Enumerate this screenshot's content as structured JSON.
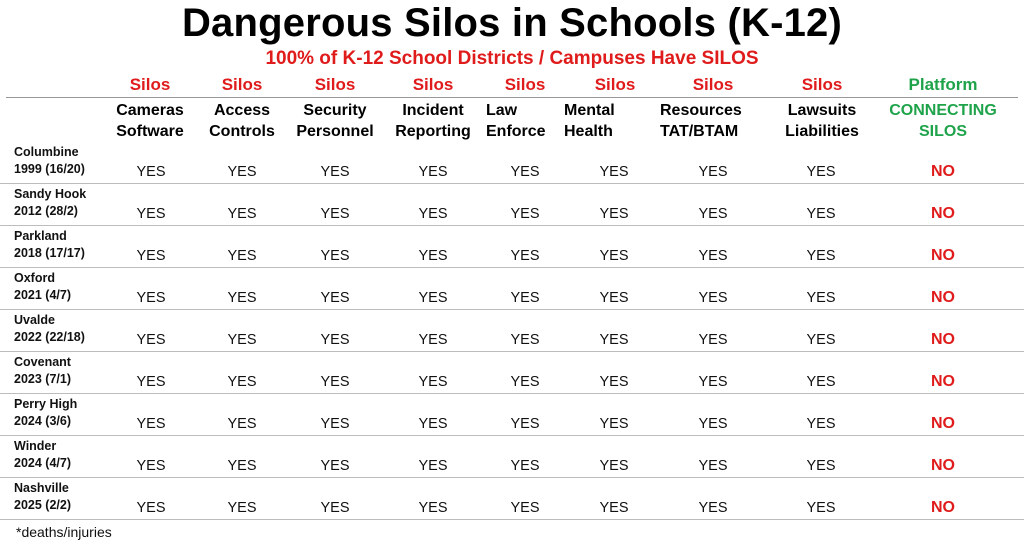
{
  "title": "Dangerous Silos in Schools (K-12)",
  "subtitle": "100% of K-12 School Districts / Campuses Have SILOS",
  "columns": [
    {
      "group": "Silos",
      "line1": "Cameras",
      "line2": "Software"
    },
    {
      "group": "Silos",
      "line1": "Access",
      "line2": "Controls"
    },
    {
      "group": "Silos",
      "line1": "Security",
      "line2": "Personnel"
    },
    {
      "group": "Silos",
      "line1": "Incident",
      "line2": "Reporting"
    },
    {
      "group": "Silos",
      "line1": "Law",
      "line2": "Enforce"
    },
    {
      "group": "Silos",
      "line1": "Mental",
      "line2": "Health"
    },
    {
      "group": "Silos",
      "line1": "Resources",
      "line2": "TAT/BTAM"
    },
    {
      "group": "Silos",
      "line1": "Lawsuits",
      "line2": "Liabilities"
    },
    {
      "group": "Platform",
      "line1": "CONNECTING",
      "line2": "SILOS"
    }
  ],
  "rows": [
    {
      "name": "Columbine",
      "detail": "1999 (16/20)",
      "values": [
        "YES",
        "YES",
        "YES",
        "YES",
        "YES",
        "YES",
        "YES",
        "YES",
        "NO"
      ]
    },
    {
      "name": "Sandy Hook",
      "detail": "2012 (28/2)",
      "values": [
        "YES",
        "YES",
        "YES",
        "YES",
        "YES",
        "YES",
        "YES",
        "YES",
        "NO"
      ]
    },
    {
      "name": "Parkland",
      "detail": "2018 (17/17)",
      "values": [
        "YES",
        "YES",
        "YES",
        "YES",
        "YES",
        "YES",
        "YES",
        "YES",
        "NO"
      ]
    },
    {
      "name": "Oxford",
      "detail": "2021 (4/7)",
      "values": [
        "YES",
        "YES",
        "YES",
        "YES",
        "YES",
        "YES",
        "YES",
        "YES",
        "NO"
      ]
    },
    {
      "name": "Uvalde",
      "detail": "2022 (22/18)",
      "values": [
        "YES",
        "YES",
        "YES",
        "YES",
        "YES",
        "YES",
        "YES",
        "YES",
        "NO"
      ]
    },
    {
      "name": "Covenant",
      "detail": "2023 (7/1)",
      "values": [
        "YES",
        "YES",
        "YES",
        "YES",
        "YES",
        "YES",
        "YES",
        "YES",
        "NO"
      ]
    },
    {
      "name": "Perry High",
      "detail": "2024 (3/6)",
      "values": [
        "YES",
        "YES",
        "YES",
        "YES",
        "YES",
        "YES",
        "YES",
        "YES",
        "NO"
      ]
    },
    {
      "name": "Winder",
      "detail": "2024 (4/7)",
      "values": [
        "YES",
        "YES",
        "YES",
        "YES",
        "YES",
        "YES",
        "YES",
        "YES",
        "NO"
      ]
    },
    {
      "name": "Nashville",
      "detail": "2025 (2/2)",
      "values": [
        "YES",
        "YES",
        "YES",
        "YES",
        "YES",
        "YES",
        "YES",
        "YES",
        "NO"
      ]
    }
  ],
  "footnote": "*deaths/injuries",
  "colors": {
    "red": "#e01b1b",
    "green": "#1fa34a",
    "text": "#111111"
  }
}
